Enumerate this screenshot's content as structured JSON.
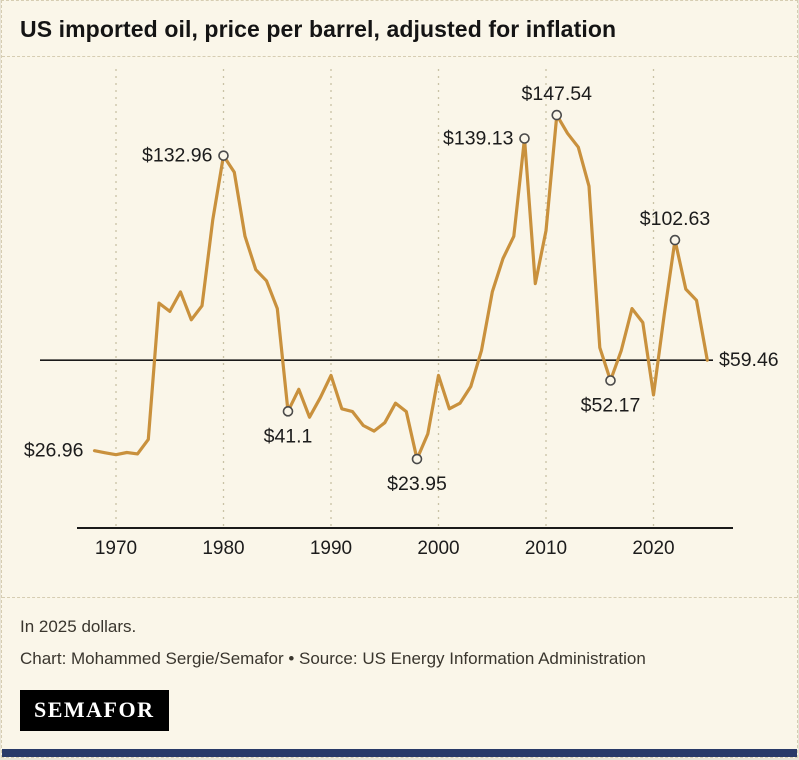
{
  "header": {
    "title": "US imported oil, price per barrel, adjusted for inflation"
  },
  "footer": {
    "note": "In 2025 dollars.",
    "credit": "Chart: Mohammed Sergie/Semafor • Source: US Energy Information Administration",
    "logo": "SEMAFOR"
  },
  "colors": {
    "line": "#c9913d",
    "background": "#faf6e9",
    "grid": "#c9c2a6",
    "axis": "#1a1a1a",
    "accent_bar": "#293a68"
  },
  "chart_data": {
    "type": "line",
    "title": "US imported oil, price per barrel, adjusted for inflation",
    "unit": "USD per barrel, in 2025 dollars",
    "x": [
      1968,
      1969,
      1970,
      1971,
      1972,
      1973,
      1974,
      1975,
      1976,
      1977,
      1978,
      1979,
      1980,
      1981,
      1982,
      1983,
      1984,
      1985,
      1986,
      1987,
      1988,
      1989,
      1990,
      1991,
      1992,
      1993,
      1994,
      1995,
      1996,
      1997,
      1998,
      1999,
      2000,
      2001,
      2002,
      2003,
      2004,
      2005,
      2006,
      2007,
      2008,
      2009,
      2010,
      2011,
      2012,
      2013,
      2014,
      2015,
      2016,
      2017,
      2018,
      2019,
      2020,
      2021,
      2022,
      2023,
      2024,
      2025
    ],
    "values": [
      26.96,
      26.2,
      25.5,
      26.3,
      25.8,
      31,
      80,
      77,
      84,
      74,
      79,
      110,
      132.96,
      127,
      104,
      92,
      88,
      78,
      41.1,
      49,
      39,
      46,
      54,
      42,
      41,
      36,
      34,
      37,
      44,
      41,
      23.95,
      33,
      54,
      42,
      44,
      50,
      63,
      84,
      96,
      104,
      139.13,
      87,
      106,
      147.54,
      141,
      136,
      122,
      64,
      52.17,
      63,
      78,
      73,
      47,
      76,
      102.63,
      85,
      81,
      59.46
    ],
    "x_ticks": [
      "1970",
      "1980",
      "1990",
      "2000",
      "2010",
      "2020"
    ],
    "ylim": [
      0,
      160
    ],
    "grid": "vertical-dashed",
    "legend": "none",
    "reference_line": {
      "value": 59.46,
      "label": "$59.46"
    },
    "annotations": [
      {
        "year": 1968,
        "value": 26.96,
        "label": "$26.96",
        "position": "left",
        "dot": false
      },
      {
        "year": 1980,
        "value": 132.96,
        "label": "$132.96",
        "position": "left",
        "dot": true
      },
      {
        "year": 1986,
        "value": 41.1,
        "label": "$41.1",
        "position": "below",
        "dot": true
      },
      {
        "year": 1998,
        "value": 23.95,
        "label": "$23.95",
        "position": "below",
        "dot": true
      },
      {
        "year": 2008,
        "value": 139.13,
        "label": "$139.13",
        "position": "left",
        "dot": true
      },
      {
        "year": 2011,
        "value": 147.54,
        "label": "$147.54",
        "position": "above",
        "dot": true
      },
      {
        "year": 2016,
        "value": 52.17,
        "label": "$52.17",
        "position": "below",
        "dot": true
      },
      {
        "year": 2022,
        "value": 102.63,
        "label": "$102.63",
        "position": "above",
        "dot": true
      }
    ]
  }
}
